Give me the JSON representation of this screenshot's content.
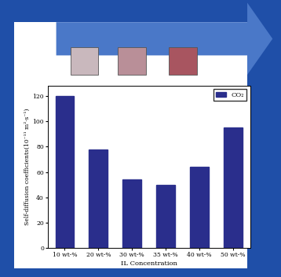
{
  "chart_data": {
    "type": "bar",
    "categories": [
      "10 wt-%",
      "20 wt-%",
      "30 wt-%",
      "35 wt-%",
      "40 wt-%",
      "50 wt-%"
    ],
    "series": [
      {
        "name": "CO₂",
        "color": "#2a2e8c",
        "values": [
          120,
          78,
          54,
          50,
          64,
          95
        ]
      }
    ],
    "x_label": "IL Concentration",
    "y_label": "Self-diffusion coefficients(10⁻¹¹ m²·s⁻¹)",
    "ylim": [
      0,
      128
    ],
    "yticks": [
      0,
      20,
      40,
      60,
      80,
      100,
      120
    ],
    "legend": "upper right",
    "grid": false
  }
}
